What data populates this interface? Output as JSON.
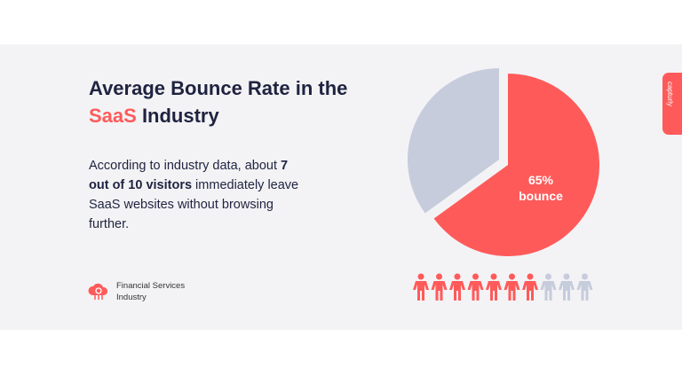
{
  "title": {
    "line1": "Average Bounce Rate in the",
    "highlight": "SaaS",
    "rest": " Industry"
  },
  "description": {
    "pre": "According to industry data, about ",
    "bold": "7 out of 10 visitors",
    "post": " immediately leave SaaS  websites without browsing further."
  },
  "footer": {
    "label": "Financial Services Industry",
    "icon": "cloud-gear-icon"
  },
  "side_tab": {
    "label": "capturly"
  },
  "colors": {
    "accent": "#ff5a5a",
    "muted": "#c6ccdc",
    "text": "#1f2340"
  },
  "chart_data": {
    "type": "pie",
    "slices": [
      {
        "label": "65% bounce",
        "value": 65,
        "color": "#ff5a5a"
      },
      {
        "label": "",
        "value": 35,
        "color": "#c6ccdc"
      }
    ],
    "pictogram": {
      "total": 10,
      "highlighted": 7
    }
  }
}
